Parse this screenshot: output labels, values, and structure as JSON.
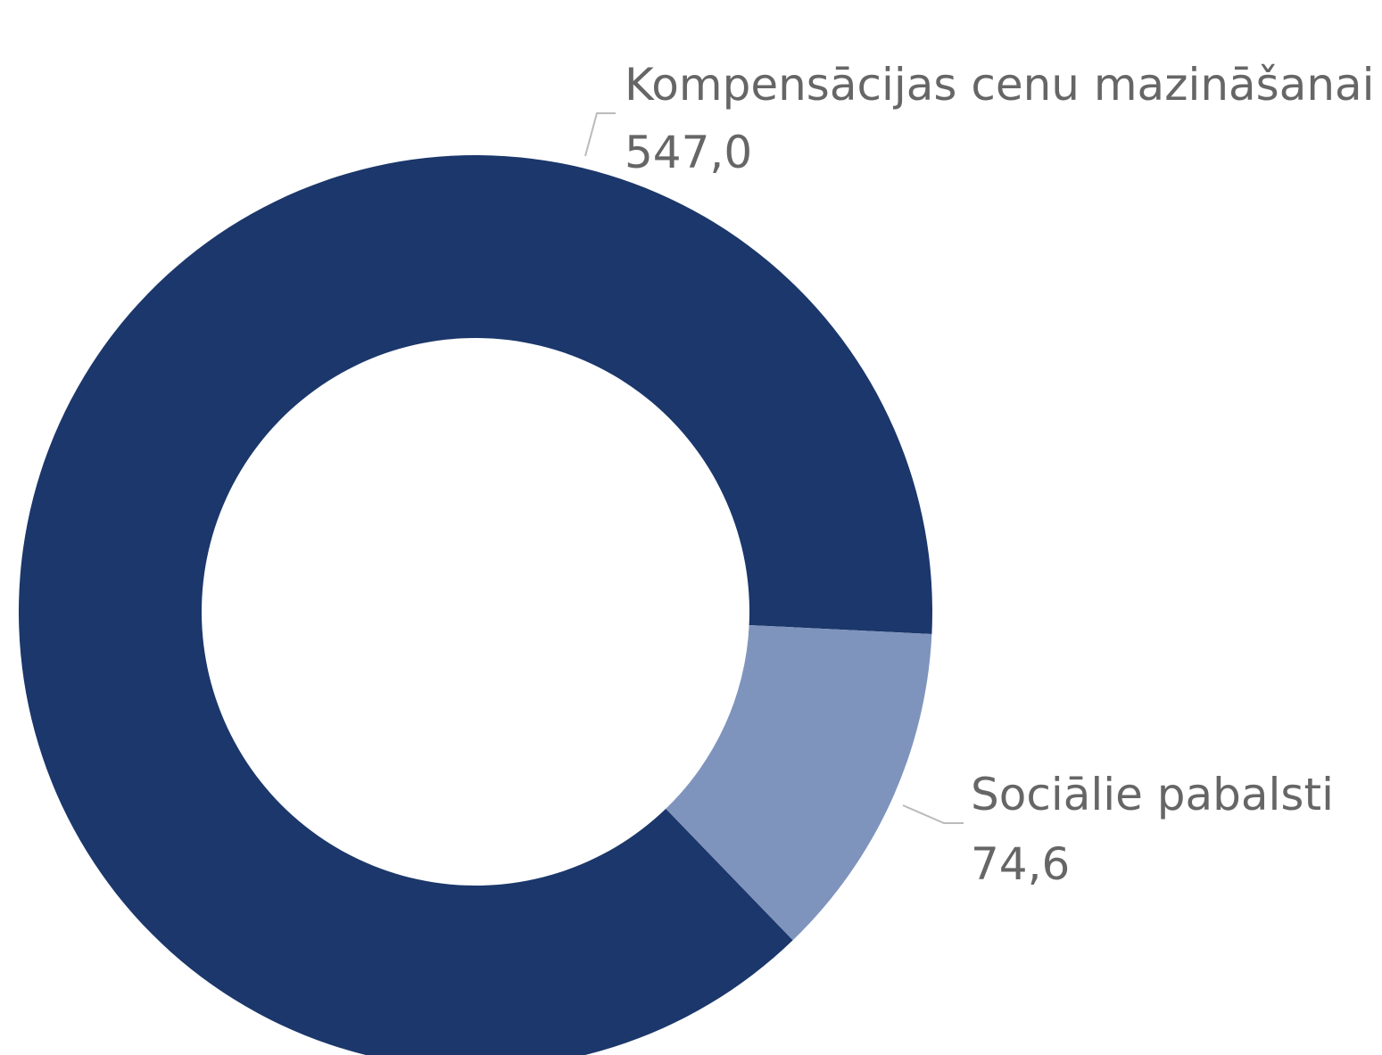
{
  "chart_data": {
    "type": "donut",
    "categories": [
      "Kompensācijas cenu mazināšanai",
      "Sociālie pabalsti"
    ],
    "values": [
      547.0,
      74.6
    ],
    "value_labels": [
      "547,0",
      "74,6"
    ],
    "colors": [
      "#1b376b",
      "#7f94bd"
    ]
  }
}
